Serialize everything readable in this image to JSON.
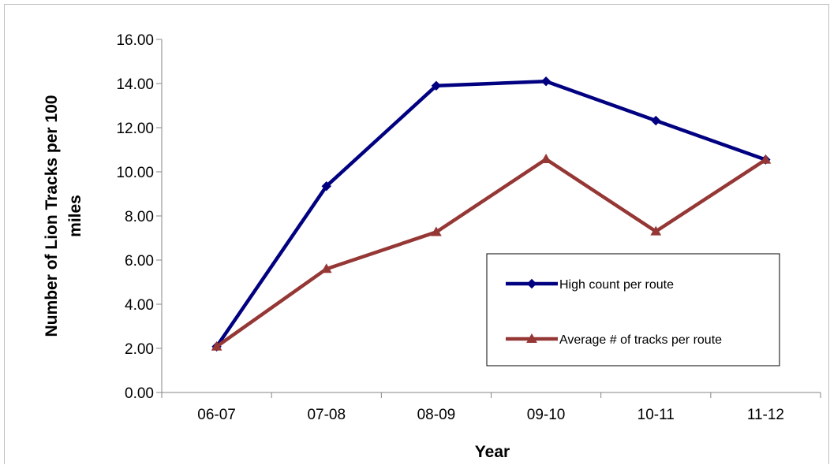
{
  "chart_data": {
    "type": "line",
    "title": "",
    "xlabel": "Year",
    "ylabel": "Number of Lion Tracks per 100 miles",
    "ylabel_line1": "Number of Lion Tracks per 100",
    "ylabel_line2": "miles",
    "ylim": [
      0,
      16
    ],
    "yticks": [
      "0.00",
      "2.00",
      "4.00",
      "6.00",
      "8.00",
      "10.00",
      "12.00",
      "14.00",
      "16.00"
    ],
    "categories": [
      "06-07",
      "07-08",
      "08-09",
      "09-10",
      "10-11",
      "11-12"
    ],
    "grid": false,
    "legend_position": "right",
    "series": [
      {
        "name": "High count per route",
        "color": "#000080",
        "marker": "diamond",
        "values": [
          2.08,
          9.35,
          13.9,
          14.1,
          12.32,
          10.55
        ]
      },
      {
        "name": "Average # of tracks per route",
        "color": "#953735",
        "marker": "triangle",
        "values": [
          2.08,
          5.6,
          7.27,
          10.57,
          7.3,
          10.55
        ]
      }
    ]
  }
}
